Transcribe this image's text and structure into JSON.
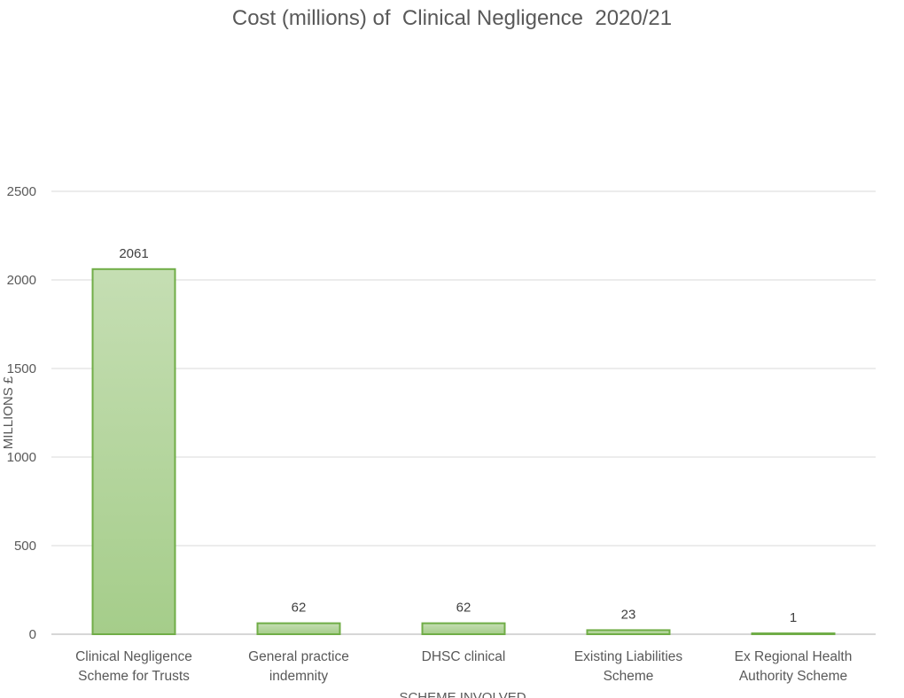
{
  "chart_data": {
    "type": "bar",
    "title": "Cost (millions) of  Clinical Negligence  2020/21",
    "xlabel": "SCHEME INVOLVED",
    "ylabel": "MILLIONS £",
    "ylim": [
      0,
      2500
    ],
    "yticks": [
      0,
      500,
      1000,
      1500,
      2000,
      2500
    ],
    "grid": true,
    "legend": "none",
    "bar_color": "#a9d08e",
    "bar_border_color": "#70ad47",
    "categories": [
      [
        "Clinical Negligence",
        "Scheme for Trusts"
      ],
      [
        "General practice",
        "indemnity"
      ],
      [
        "DHSC clinical"
      ],
      [
        "Existing Liabilities",
        "Scheme"
      ],
      [
        "Ex Regional Health",
        "Authority Scheme"
      ]
    ],
    "values": [
      2061,
      62,
      62,
      23,
      1
    ]
  }
}
